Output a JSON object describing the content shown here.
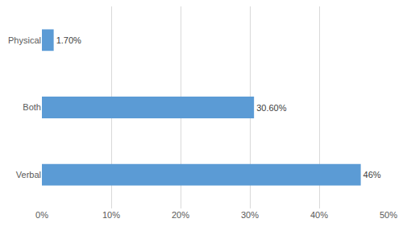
{
  "chart_data": {
    "type": "bar",
    "orientation": "horizontal",
    "categories": [
      "Physical",
      "Both",
      "Verbal"
    ],
    "values": [
      1.7,
      30.6,
      46
    ],
    "value_labels": [
      "1.70%",
      "30.60%",
      "46%"
    ],
    "data_labels": true,
    "color": "#5b9bd5",
    "xlim": [
      0,
      50
    ],
    "xticks": [
      {
        "value": 0,
        "label": "0%"
      },
      {
        "value": 10,
        "label": "10%"
      },
      {
        "value": 20,
        "label": "20%"
      },
      {
        "value": 30,
        "label": "30%"
      },
      {
        "value": 40,
        "label": "40%"
      },
      {
        "value": 50,
        "label": "50%"
      }
    ],
    "grid": true
  }
}
